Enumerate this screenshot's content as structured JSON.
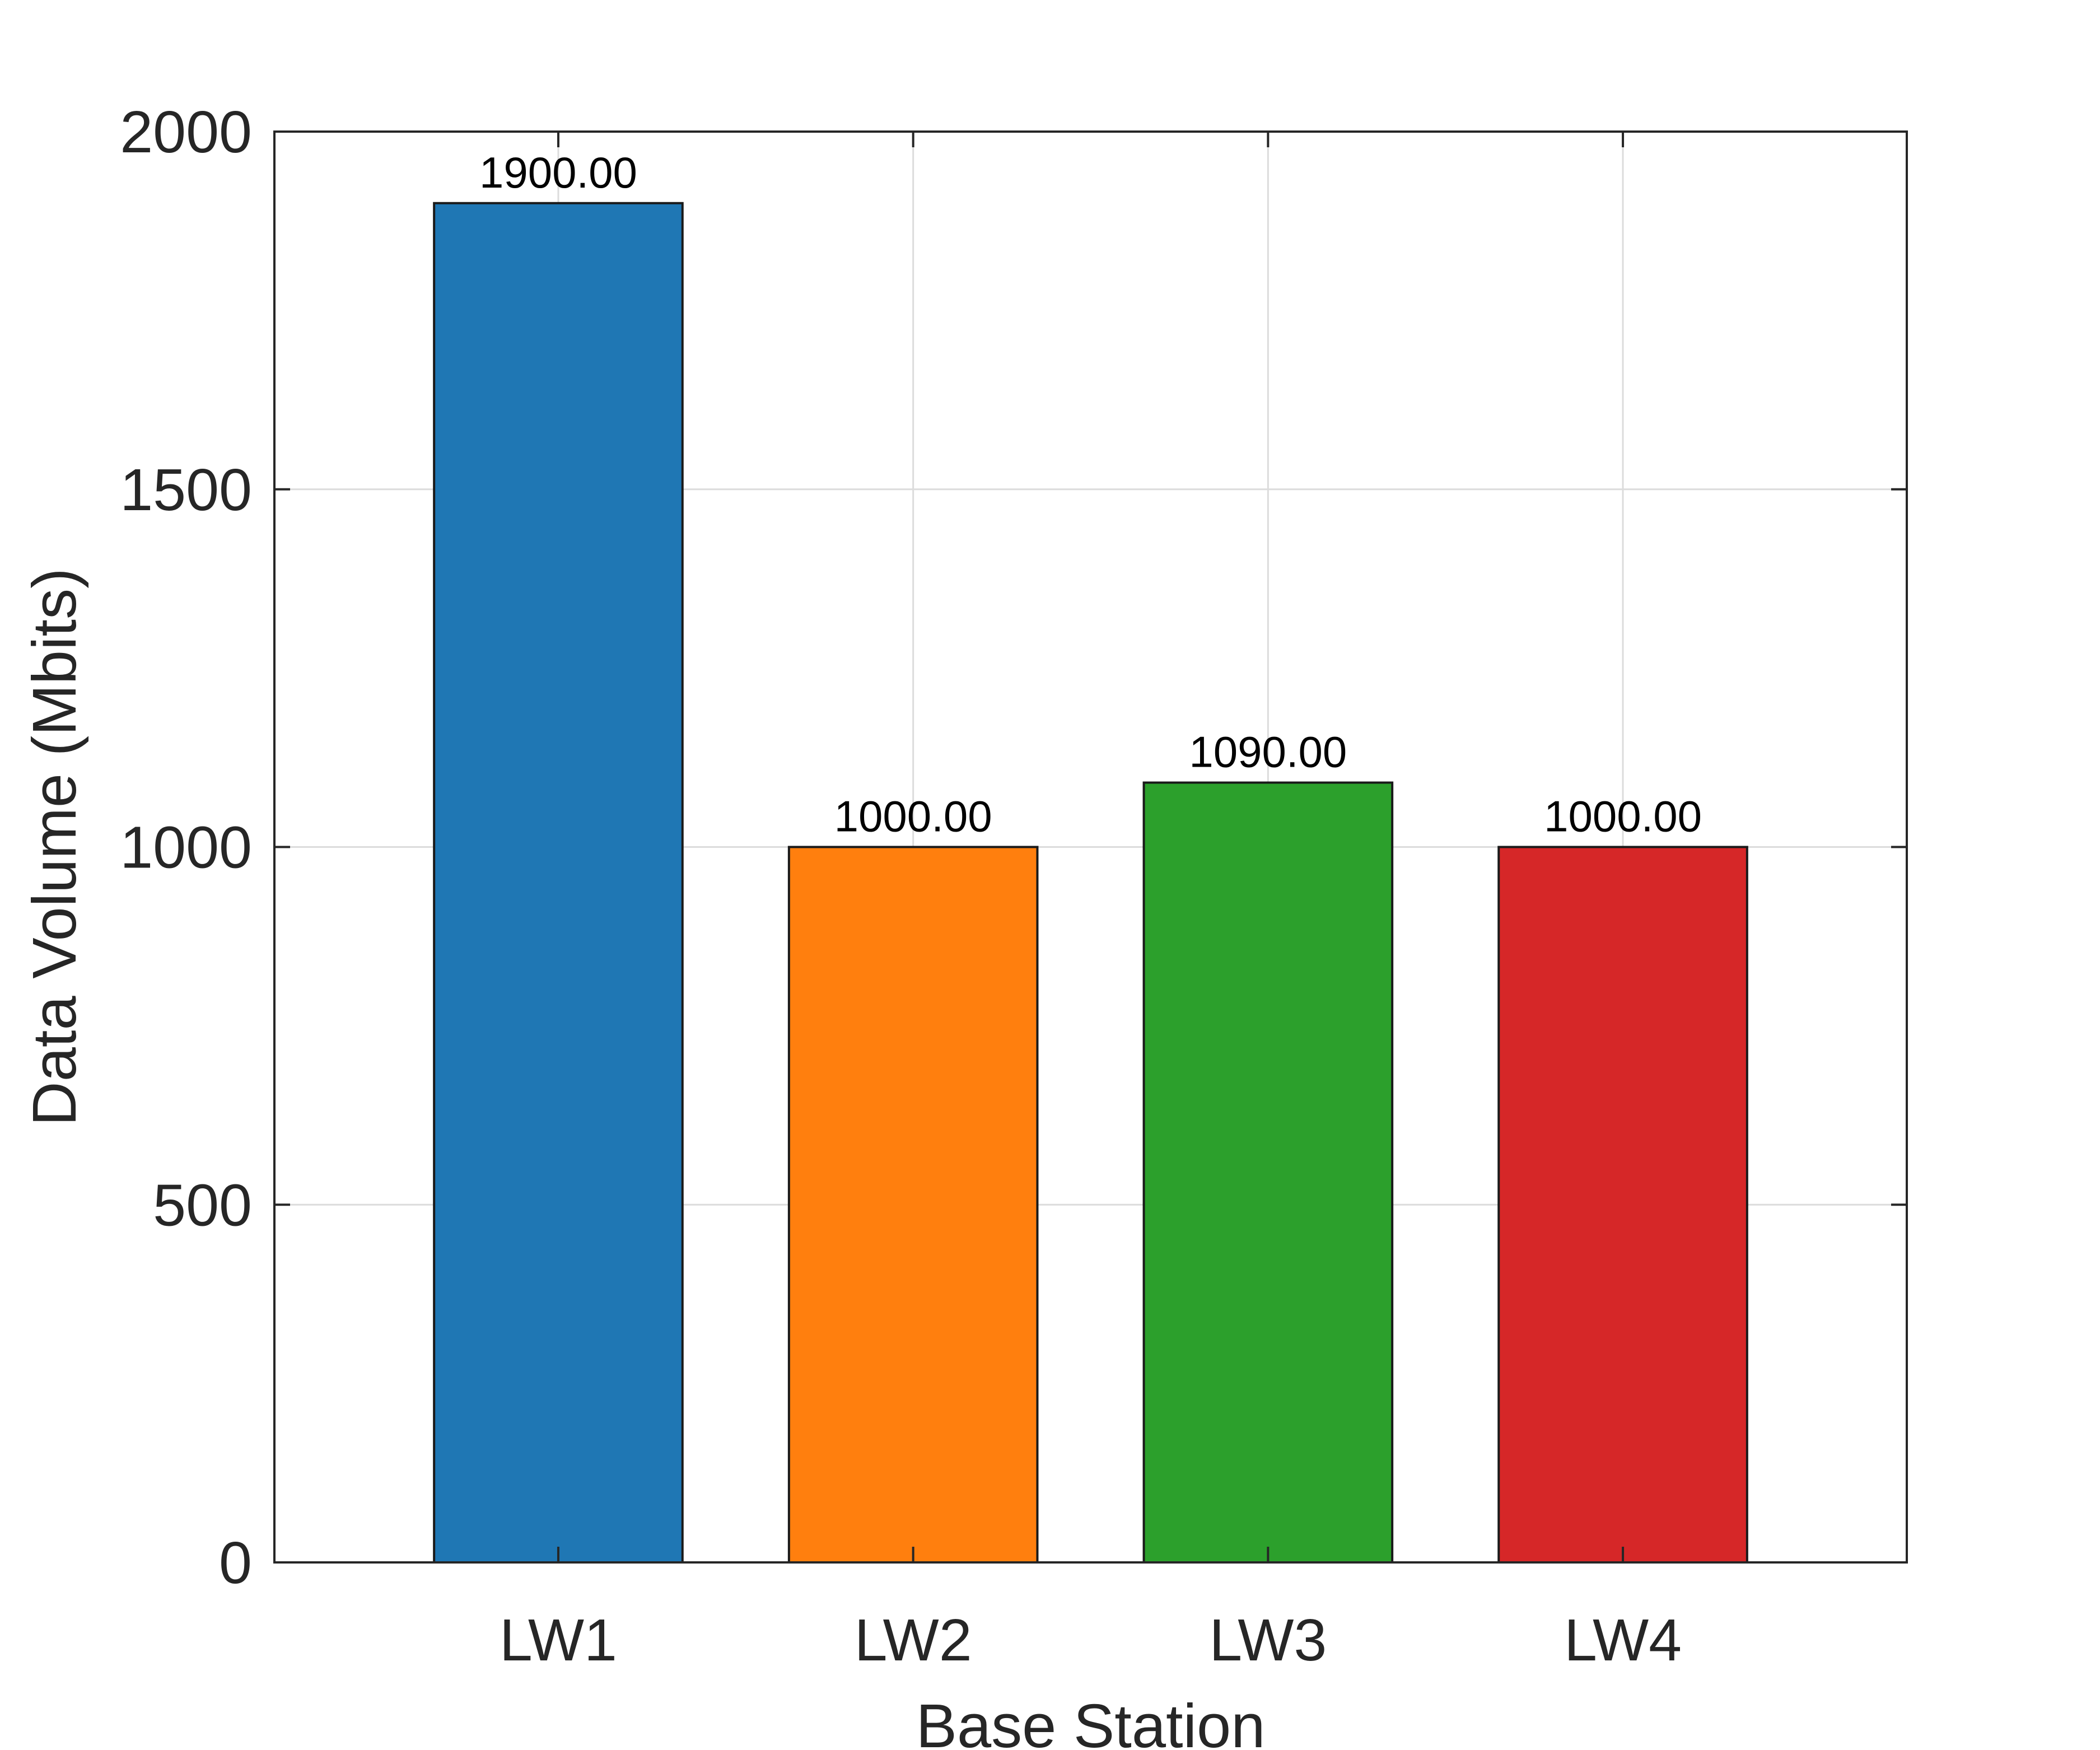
{
  "chart_data": {
    "type": "bar",
    "categories": [
      "LW1",
      "LW2",
      "LW3",
      "LW4"
    ],
    "values": [
      1900,
      1000,
      1090,
      1000
    ],
    "value_labels": [
      "1900.00",
      "1000.00",
      "1090.00",
      "1000.00"
    ],
    "colors": [
      "#1f77b4",
      "#ff7f0e",
      "#2ca02c",
      "#d62728"
    ],
    "title": "",
    "xlabel": "Base Station",
    "ylabel": "Data Volume (Mbits)",
    "ylim": [
      0,
      2000
    ],
    "yticks": [
      0,
      500,
      1000,
      1500,
      2000
    ],
    "xlim": [
      0.2,
      4.8
    ],
    "grid": true,
    "legend": "none"
  }
}
